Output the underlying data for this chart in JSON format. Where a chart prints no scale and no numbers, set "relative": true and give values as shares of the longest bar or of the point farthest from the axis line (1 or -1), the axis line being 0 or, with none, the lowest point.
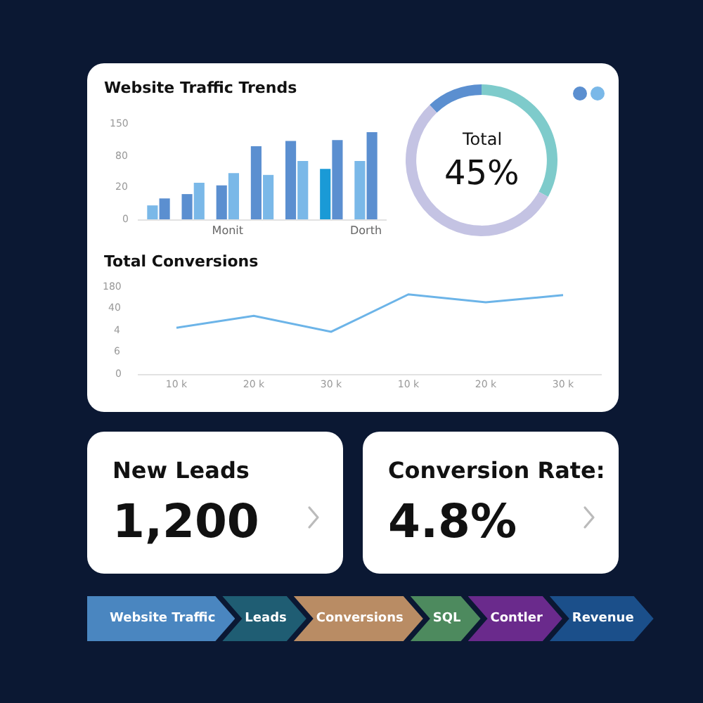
{
  "chart_data": [
    {
      "type": "bar",
      "title": "Website Traffic Trends",
      "categories": [
        null,
        null,
        "Monit",
        null,
        null,
        null,
        "Dorth"
      ],
      "series": [
        {
          "colors": [
            "#7ab8e8",
            "#5b8fd0",
            "#5b8fd0",
            "#5b8fd0",
            "#5b8fd0",
            "#1a9ad6",
            "#7ab8e8"
          ],
          "values": [
            0.16,
            0.29,
            0.39,
            0.84,
            0.9,
            0.58,
            0.67
          ]
        },
        {
          "colors": [
            "#5b8fd0",
            "#7ab8e8",
            "#7ab8e8",
            "#7ab8e8",
            "#7ab8e8",
            "#5b8fd0",
            "#5b8fd0"
          ],
          "values": [
            0.24,
            0.42,
            0.53,
            0.51,
            0.67,
            0.91,
            1
          ]
        }
      ],
      "relative": true,
      "annotations": [
        "0",
        "20",
        "80",
        "150"
      ]
    },
    {
      "type": "donut",
      "categories": [
        null,
        null,
        null
      ],
      "values": [
        33,
        12,
        55
      ],
      "colors": [
        "#7ecbcb",
        "#5b8fd0",
        "#c4c3e3"
      ],
      "annotations": [
        "Total",
        "45%"
      ]
    },
    {
      "type": "line",
      "title": "Total Conversions",
      "categories": [
        "10 k",
        "20 k",
        "30 k",
        "10 k",
        "20 k",
        "30 k"
      ],
      "values": [
        0.58,
        0.73,
        0.53,
        1,
        0.9,
        0.99
      ],
      "color": "#6cb4e8",
      "relative": true,
      "annotations": [
        "0",
        "6",
        "4",
        "40",
        "180"
      ]
    },
    {
      "type": "other",
      "title": "New Leads",
      "annotations": [
        "1,200"
      ]
    },
    {
      "type": "other",
      "title": "Conversion Rate:",
      "annotations": [
        "4.8%"
      ]
    },
    {
      "type": "other",
      "categories": [
        "Website Traffic",
        "Leads",
        "Conversions",
        "SQL",
        "Contler",
        "Revenue"
      ],
      "colors": [
        "#4a86c0",
        "#1f5d73",
        "#b98c64",
        "#4d8a5e",
        "#6a2a8c",
        "#1b4f8a"
      ]
    }
  ]
}
